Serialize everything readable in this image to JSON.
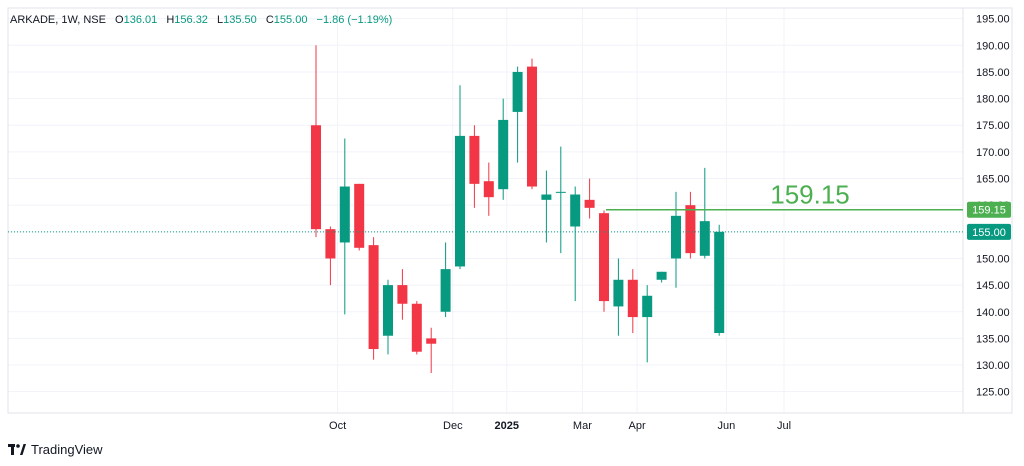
{
  "legend": {
    "symbol": "ARKADE, 1W, NSE",
    "o_label": "O",
    "o_value": "136.01",
    "h_label": "H",
    "h_value": "156.32",
    "l_label": "L",
    "l_value": "135.50",
    "c_label": "C",
    "c_value": "155.00",
    "change": "−1.86 (−1.19%)"
  },
  "brand": {
    "name": "TradingView"
  },
  "colors": {
    "up": "#089981",
    "down": "#F23645",
    "level": "#4CAF50",
    "grid": "#F0F3FA",
    "axis_text": "#131722"
  },
  "chart_data": {
    "type": "candlestick",
    "title": "ARKADE, 1W, NSE",
    "ylim": [
      121,
      197
    ],
    "y_ticks": [
      125,
      130,
      135,
      140,
      145,
      150,
      155,
      160,
      165,
      170,
      175,
      180,
      185,
      190,
      195
    ],
    "x_ticks": [
      {
        "label": "Oct",
        "week": 1.5
      },
      {
        "label": "Dec",
        "week": 9.5
      },
      {
        "label": "2025",
        "week": 13.25
      },
      {
        "label": "Mar",
        "week": 18.5
      },
      {
        "label": "Apr",
        "week": 22.3
      },
      {
        "label": "Jun",
        "week": 28.5
      },
      {
        "label": "Jul",
        "week": 32.5
      }
    ],
    "candles": [
      {
        "o": 175.0,
        "h": 190.0,
        "l": 154.0,
        "c": 155.5
      },
      {
        "o": 155.5,
        "h": 156.0,
        "l": 145.0,
        "c": 150.0
      },
      {
        "o": 153.0,
        "h": 172.5,
        "l": 139.5,
        "c": 163.5
      },
      {
        "o": 164.0,
        "h": 164.0,
        "l": 151.5,
        "c": 152.0
      },
      {
        "o": 152.5,
        "h": 154.0,
        "l": 131.0,
        "c": 133.0
      },
      {
        "o": 135.5,
        "h": 146.0,
        "l": 132.0,
        "c": 145.0
      },
      {
        "o": 145.0,
        "h": 148.0,
        "l": 138.5,
        "c": 141.5
      },
      {
        "o": 141.5,
        "h": 142.0,
        "l": 132.0,
        "c": 132.5
      },
      {
        "o": 135.0,
        "h": 137.0,
        "l": 128.5,
        "c": 134.0
      },
      {
        "o": 140.0,
        "h": 153.0,
        "l": 139.0,
        "c": 148.0
      },
      {
        "o": 148.5,
        "h": 182.5,
        "l": 148.0,
        "c": 173.0
      },
      {
        "o": 173.0,
        "h": 175.0,
        "l": 159.5,
        "c": 164.0
      },
      {
        "o": 164.5,
        "h": 168.0,
        "l": 158.0,
        "c": 161.5
      },
      {
        "o": 163.0,
        "h": 180.0,
        "l": 161.0,
        "c": 176.0
      },
      {
        "o": 177.5,
        "h": 186.0,
        "l": 168.0,
        "c": 185.0
      },
      {
        "o": 186.0,
        "h": 187.5,
        "l": 163.0,
        "c": 163.5
      },
      {
        "o": 161.0,
        "h": 166.5,
        "l": 153.0,
        "c": 162.0
      },
      {
        "o": 162.5,
        "h": 171.0,
        "l": 151.0,
        "c": 162.5
      },
      {
        "o": 156.0,
        "h": 163.5,
        "l": 142.0,
        "c": 162.0
      },
      {
        "o": 161.0,
        "h": 165.0,
        "l": 157.5,
        "c": 159.5
      },
      {
        "o": 158.5,
        "h": 159.0,
        "l": 140.0,
        "c": 142.0
      },
      {
        "o": 141.0,
        "h": 150.0,
        "l": 135.5,
        "c": 146.0
      },
      {
        "o": 146.0,
        "h": 148.0,
        "l": 136.0,
        "c": 139.0
      },
      {
        "o": 139.0,
        "h": 145.0,
        "l": 130.5,
        "c": 143.0
      },
      {
        "o": 146.0,
        "h": 147.5,
        "l": 145.5,
        "c": 147.5
      },
      {
        "o": 150.0,
        "h": 162.5,
        "l": 144.5,
        "c": 158.0
      },
      {
        "o": 160.0,
        "h": 162.5,
        "l": 150.0,
        "c": 151.0
      },
      {
        "o": 150.5,
        "h": 167.0,
        "l": 150.0,
        "c": 157.0
      },
      {
        "o": 136.01,
        "h": 156.32,
        "l": 135.5,
        "c": 155.0
      }
    ],
    "horizontal_level": {
      "value": 159.15,
      "label": "159.15",
      "start_week": 20
    },
    "last_price": {
      "value": 155.0,
      "label": "155.00"
    }
  }
}
